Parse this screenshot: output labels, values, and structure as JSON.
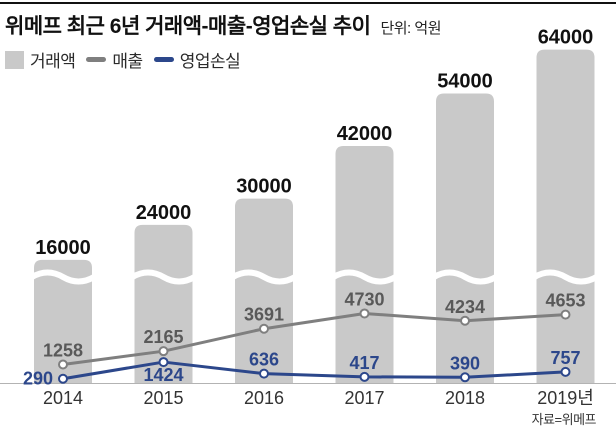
{
  "header": {
    "title": "위메프 최근 6년 거래액-매출-영업손실 추이",
    "unit_label": "단위: 억원"
  },
  "legend": [
    {
      "label": "거래액",
      "swatch": "bar-square",
      "color": "#c9c9c9"
    },
    {
      "label": "매출",
      "swatch": "line-dash",
      "color": "#7f7f7f"
    },
    {
      "label": "영업손실",
      "swatch": "line-dash",
      "color": "#2c478b"
    }
  ],
  "chart_data": {
    "type": "bar",
    "subtype": "bar-line-combo",
    "title": "위메프 최근 6년 거래액-매출-영업손실 추이",
    "unit": "억원",
    "categories": [
      "2014",
      "2015",
      "2016",
      "2017",
      "2018",
      "2019년"
    ],
    "series": [
      {
        "name": "거래액",
        "type": "bar",
        "color": "#c9c9c9",
        "values": [
          16000,
          24000,
          30000,
          42000,
          54000,
          64000
        ],
        "label_color": "#111111",
        "axis_break": true
      },
      {
        "name": "매출",
        "type": "line",
        "color": "#7f7f7f",
        "values": [
          1258,
          2165,
          3691,
          4730,
          4234,
          4653
        ],
        "label_color": "#595959",
        "marker": "open-circle"
      },
      {
        "name": "영업손실",
        "type": "line",
        "color": "#2c478b",
        "values": [
          290,
          1424,
          636,
          417,
          390,
          757
        ],
        "label_color": "#2c478b",
        "marker": "open-circle"
      }
    ],
    "grid": false,
    "legend_position": "top-left",
    "axis_line_color": "#b3b3b3"
  },
  "footer": {
    "source": "자료=위메프"
  }
}
